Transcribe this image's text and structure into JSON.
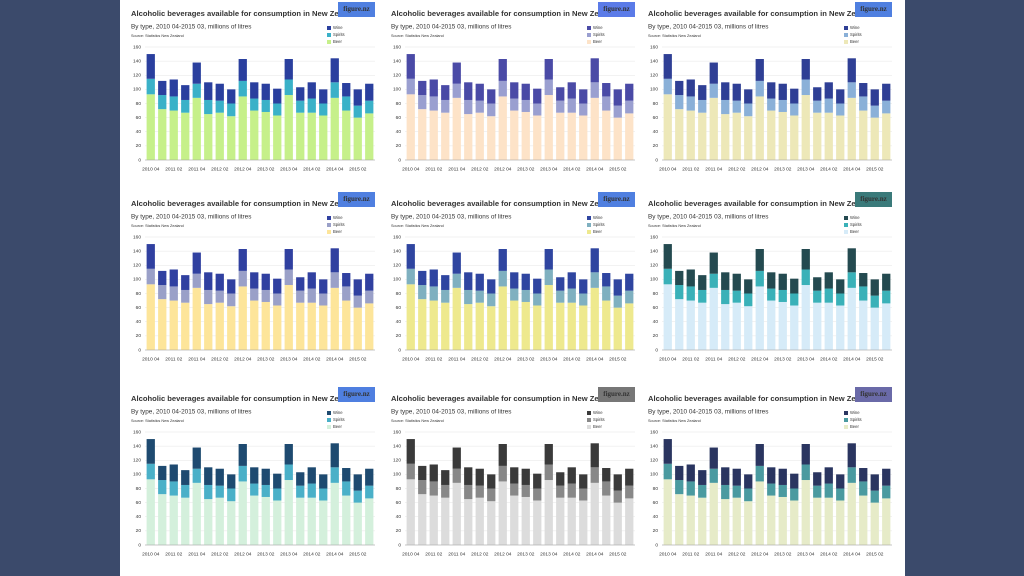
{
  "chart_data": [
    {
      "type": "bar",
      "stacked": true,
      "title": "Alcoholic beverages available for consumption in New Zealand",
      "subtitle": "By type, 2010 04-2015 03, millions of litres",
      "source": "Source: Statistics New Zealand",
      "logo": "figure.nz",
      "logo_color": "#4f7fe0",
      "categories": [
        "2010 04",
        null,
        "2011 02",
        null,
        "2011 04",
        null,
        "2012 02",
        null,
        "2012 04",
        null,
        "2013 02",
        null,
        "2013 04",
        null,
        "2014 02",
        null,
        "2014 04",
        null,
        "2015 02",
        null
      ],
      "series": [
        {
          "name": "Beer",
          "color": "#c6f08a",
          "values": [
            93,
            72,
            70,
            67,
            88,
            65,
            67,
            62,
            90,
            70,
            68,
            63,
            92,
            67,
            67,
            63,
            88,
            70,
            60,
            66
          ]
        },
        {
          "name": "Spirits",
          "color": "#3ab1c8",
          "values": [
            22,
            20,
            20,
            18,
            20,
            20,
            17,
            18,
            22,
            17,
            17,
            17,
            22,
            17,
            20,
            17,
            22,
            20,
            17,
            18
          ]
        },
        {
          "name": "Wine",
          "color": "#2a3f9e",
          "values": [
            35,
            20,
            24,
            21,
            30,
            25,
            24,
            20,
            31,
            23,
            23,
            21,
            29,
            19,
            23,
            20,
            34,
            19,
            23,
            24
          ]
        }
      ],
      "ylim": [
        0,
        160
      ],
      "yticks": [
        0,
        20,
        40,
        60,
        80,
        100,
        120,
        140,
        160
      ],
      "grid": true
    },
    {
      "type": "bar",
      "stacked": true,
      "title": "Alcoholic beverages available for consumption in New Zealand",
      "subtitle": "By type, 2010 04-2015 03, millions of litres",
      "source": "Source: Statistics New Zealand",
      "logo": "figure.nz",
      "logo_color": "#5b7be8",
      "categories": [
        "2010 04",
        null,
        "2011 02",
        null,
        "2011 04",
        null,
        "2012 02",
        null,
        "2012 04",
        null,
        "2013 02",
        null,
        "2013 04",
        null,
        "2014 02",
        null,
        "2014 04",
        null,
        "2015 02",
        null
      ],
      "series": [
        {
          "name": "Beer",
          "color": "#fde3c8",
          "values": [
            93,
            72,
            70,
            67,
            88,
            65,
            67,
            62,
            90,
            70,
            68,
            63,
            92,
            67,
            67,
            63,
            88,
            70,
            60,
            66
          ]
        },
        {
          "name": "Spirits",
          "color": "#9a9fd0",
          "values": [
            22,
            20,
            20,
            18,
            20,
            20,
            17,
            18,
            22,
            17,
            17,
            17,
            22,
            17,
            20,
            17,
            22,
            20,
            17,
            18
          ]
        },
        {
          "name": "Wine",
          "color": "#4a4aa6",
          "values": [
            35,
            20,
            24,
            21,
            30,
            25,
            24,
            20,
            31,
            23,
            23,
            21,
            29,
            19,
            23,
            20,
            34,
            19,
            23,
            24
          ]
        }
      ],
      "ylim": [
        0,
        160
      ],
      "yticks": [
        0,
        20,
        40,
        60,
        80,
        100,
        120,
        140,
        160
      ],
      "grid": true
    },
    {
      "type": "bar",
      "stacked": true,
      "title": "Alcoholic beverages available for consumption in New Zealand",
      "subtitle": "By type, 2010 04-2015 03, millions of litres",
      "source": "Source: Statistics New Zealand",
      "logo": "figure.nz",
      "logo_color": "#4f7fe0",
      "categories": [
        "2010 04",
        null,
        "2011 02",
        null,
        "2011 04",
        null,
        "2012 02",
        null,
        "2012 04",
        null,
        "2013 02",
        null,
        "2013 04",
        null,
        "2014 02",
        null,
        "2014 04",
        null,
        "2015 02",
        null
      ],
      "series": [
        {
          "name": "Beer",
          "color": "#ede8b8",
          "values": [
            93,
            72,
            70,
            67,
            88,
            65,
            67,
            62,
            90,
            70,
            68,
            63,
            92,
            67,
            67,
            63,
            88,
            70,
            60,
            66
          ]
        },
        {
          "name": "Spirits",
          "color": "#8ab0d8",
          "values": [
            22,
            20,
            20,
            18,
            20,
            20,
            17,
            18,
            22,
            17,
            17,
            17,
            22,
            17,
            20,
            17,
            22,
            20,
            17,
            18
          ]
        },
        {
          "name": "Wine",
          "color": "#2f3f95",
          "values": [
            35,
            20,
            24,
            21,
            30,
            25,
            24,
            20,
            31,
            23,
            23,
            21,
            29,
            19,
            23,
            20,
            34,
            19,
            23,
            24
          ]
        }
      ],
      "ylim": [
        0,
        160
      ],
      "yticks": [
        0,
        20,
        40,
        60,
        80,
        100,
        120,
        140,
        160
      ],
      "grid": true
    },
    {
      "type": "bar",
      "stacked": true,
      "title": "Alcoholic beverages available for consumption in New Zealand",
      "subtitle": "By type, 2010 04-2015 03, millions of litres",
      "source": "Source: Statistics New Zealand",
      "logo": "figure.nz",
      "logo_color": "#4f7fe0",
      "categories": [
        "2010 04",
        null,
        "2011 02",
        null,
        "2011 04",
        null,
        "2012 02",
        null,
        "2012 04",
        null,
        "2013 02",
        null,
        "2013 04",
        null,
        "2014 02",
        null,
        "2014 04",
        null,
        "2015 02",
        null
      ],
      "series": [
        {
          "name": "Beer",
          "color": "#fde59a",
          "values": [
            93,
            72,
            70,
            67,
            88,
            65,
            67,
            62,
            90,
            70,
            68,
            63,
            92,
            67,
            67,
            63,
            88,
            70,
            60,
            66
          ]
        },
        {
          "name": "Spirits",
          "color": "#9aa0c8",
          "values": [
            22,
            20,
            20,
            18,
            20,
            20,
            17,
            18,
            22,
            17,
            17,
            17,
            22,
            17,
            20,
            17,
            22,
            20,
            17,
            18
          ]
        },
        {
          "name": "Wine",
          "color": "#3040a0",
          "values": [
            35,
            20,
            24,
            21,
            30,
            25,
            24,
            20,
            31,
            23,
            23,
            21,
            29,
            19,
            23,
            20,
            34,
            19,
            23,
            24
          ]
        }
      ],
      "ylim": [
        0,
        160
      ],
      "yticks": [
        0,
        20,
        40,
        60,
        80,
        100,
        120,
        140,
        160
      ],
      "grid": true
    },
    {
      "type": "bar",
      "stacked": true,
      "title": "Alcoholic beverages available for consumption in New Zealand",
      "subtitle": "By type, 2010 04-2015 03, millions of litres",
      "source": "Source: Statistics New Zealand",
      "logo": "figure.nz",
      "logo_color": "#4f7fe0",
      "categories": [
        "2010 04",
        null,
        "2011 02",
        null,
        "2011 04",
        null,
        "2012 02",
        null,
        "2012 04",
        null,
        "2013 02",
        null,
        "2013 04",
        null,
        "2014 02",
        null,
        "2014 04",
        null,
        "2015 02",
        null
      ],
      "series": [
        {
          "name": "Beer",
          "color": "#eee98e",
          "values": [
            93,
            72,
            70,
            67,
            88,
            65,
            67,
            62,
            90,
            70,
            68,
            63,
            92,
            67,
            67,
            63,
            88,
            70,
            60,
            66
          ]
        },
        {
          "name": "Spirits",
          "color": "#7fb0c0",
          "values": [
            22,
            20,
            20,
            18,
            20,
            20,
            17,
            18,
            22,
            17,
            17,
            17,
            22,
            17,
            20,
            17,
            22,
            20,
            17,
            18
          ]
        },
        {
          "name": "Wine",
          "color": "#2f45a0",
          "values": [
            35,
            20,
            24,
            21,
            30,
            25,
            24,
            20,
            31,
            23,
            23,
            21,
            29,
            19,
            23,
            20,
            34,
            19,
            23,
            24
          ]
        }
      ],
      "ylim": [
        0,
        160
      ],
      "yticks": [
        0,
        20,
        40,
        60,
        80,
        100,
        120,
        140,
        160
      ],
      "grid": true
    },
    {
      "type": "bar",
      "stacked": true,
      "title": "Alcoholic beverages available for consumption in New Zealand",
      "subtitle": "By type, 2010 04-2015 03, millions of litres",
      "source": "Source: Statistics New Zealand",
      "logo": "figure.nz",
      "logo_color": "#3a7a7a",
      "categories": [
        "2010 04",
        null,
        "2011 02",
        null,
        "2011 04",
        null,
        "2012 02",
        null,
        "2012 04",
        null,
        "2013 02",
        null,
        "2013 04",
        null,
        "2014 02",
        null,
        "2014 04",
        null,
        "2015 02",
        null
      ],
      "series": [
        {
          "name": "Beer",
          "color": "#d6ebf8",
          "values": [
            93,
            72,
            70,
            67,
            88,
            65,
            67,
            62,
            90,
            70,
            68,
            63,
            92,
            67,
            67,
            63,
            88,
            70,
            60,
            66
          ]
        },
        {
          "name": "Spirits",
          "color": "#3ab1b8",
          "values": [
            22,
            20,
            20,
            18,
            20,
            20,
            17,
            18,
            22,
            17,
            17,
            17,
            22,
            17,
            20,
            17,
            22,
            20,
            17,
            18
          ]
        },
        {
          "name": "Wine",
          "color": "#244a50",
          "values": [
            35,
            20,
            24,
            21,
            30,
            25,
            24,
            20,
            31,
            23,
            23,
            21,
            29,
            19,
            23,
            20,
            34,
            19,
            23,
            24
          ]
        }
      ],
      "ylim": [
        0,
        160
      ],
      "yticks": [
        0,
        20,
        40,
        60,
        80,
        100,
        120,
        140,
        160
      ],
      "grid": true
    },
    {
      "type": "bar",
      "stacked": true,
      "title": "Alcoholic beverages available for consumption in New Zealand",
      "subtitle": "By type, 2010 04-2015 03, millions of litres",
      "source": "Source: Statistics New Zealand",
      "logo": "figure.nz",
      "logo_color": "#4f7fe0",
      "categories": [
        "2010 04",
        null,
        "2011 02",
        null,
        "2011 04",
        null,
        "2012 02",
        null,
        "2012 04",
        null,
        "2013 02",
        null,
        "2013 04",
        null,
        "2014 02",
        null,
        "2014 04",
        null,
        "2015 02",
        null
      ],
      "series": [
        {
          "name": "Beer",
          "color": "#d4f0dc",
          "values": [
            93,
            72,
            70,
            67,
            88,
            65,
            67,
            62,
            90,
            70,
            68,
            63,
            92,
            67,
            67,
            63,
            88,
            70,
            60,
            66
          ]
        },
        {
          "name": "Spirits",
          "color": "#4ab0c8",
          "values": [
            22,
            20,
            20,
            18,
            20,
            20,
            17,
            18,
            22,
            17,
            17,
            17,
            22,
            17,
            20,
            17,
            22,
            20,
            17,
            18
          ]
        },
        {
          "name": "Wine",
          "color": "#1e4a70",
          "values": [
            35,
            20,
            24,
            21,
            30,
            25,
            24,
            20,
            31,
            23,
            23,
            21,
            29,
            19,
            23,
            20,
            34,
            19,
            23,
            24
          ]
        }
      ],
      "ylim": [
        0,
        160
      ],
      "yticks": [
        0,
        20,
        40,
        60,
        80,
        100,
        120,
        140,
        160
      ],
      "grid": true
    },
    {
      "type": "bar",
      "stacked": true,
      "title": "Alcoholic beverages available for consumption in New Zealand",
      "subtitle": "By type, 2010 04-2015 03, millions of litres",
      "source": "Source: Statistics New Zealand",
      "logo": "figure.nz",
      "logo_color": "#777777",
      "categories": [
        "2010 04",
        null,
        "2011 02",
        null,
        "2011 04",
        null,
        "2012 02",
        null,
        "2012 04",
        null,
        "2013 02",
        null,
        "2013 04",
        null,
        "2014 02",
        null,
        "2014 04",
        null,
        "2015 02",
        null
      ],
      "series": [
        {
          "name": "Beer",
          "color": "#dcdcdc",
          "values": [
            93,
            72,
            70,
            67,
            88,
            65,
            67,
            62,
            90,
            70,
            68,
            63,
            92,
            67,
            67,
            63,
            88,
            70,
            60,
            66
          ]
        },
        {
          "name": "Spirits",
          "color": "#888888",
          "values": [
            22,
            20,
            20,
            18,
            20,
            20,
            17,
            18,
            22,
            17,
            17,
            17,
            22,
            17,
            20,
            17,
            22,
            20,
            17,
            18
          ]
        },
        {
          "name": "Wine",
          "color": "#3a3a3a",
          "values": [
            35,
            20,
            24,
            21,
            30,
            25,
            24,
            20,
            31,
            23,
            23,
            21,
            29,
            19,
            23,
            20,
            34,
            19,
            23,
            24
          ]
        }
      ],
      "ylim": [
        0,
        160
      ],
      "yticks": [
        0,
        20,
        40,
        60,
        80,
        100,
        120,
        140,
        160
      ],
      "grid": true
    },
    {
      "type": "bar",
      "stacked": true,
      "title": "Alcoholic beverages available for consumption in New Zealand",
      "subtitle": "By type, 2010 04-2015 03, millions of litres",
      "source": "Source: Statistics New Zealand",
      "logo": "figure.nz",
      "logo_color": "#6a6aa8",
      "categories": [
        "2010 04",
        null,
        "2011 02",
        null,
        "2011 04",
        null,
        "2012 02",
        null,
        "2012 04",
        null,
        "2013 02",
        null,
        "2013 04",
        null,
        "2014 02",
        null,
        "2014 04",
        null,
        "2015 02",
        null
      ],
      "series": [
        {
          "name": "Beer",
          "color": "#e6ebc8",
          "values": [
            93,
            72,
            70,
            67,
            88,
            65,
            67,
            62,
            90,
            70,
            68,
            63,
            92,
            67,
            67,
            63,
            88,
            70,
            60,
            66
          ]
        },
        {
          "name": "Spirits",
          "color": "#4a9aa0",
          "values": [
            22,
            20,
            20,
            18,
            20,
            20,
            17,
            18,
            22,
            17,
            17,
            17,
            22,
            17,
            20,
            17,
            22,
            20,
            17,
            18
          ]
        },
        {
          "name": "Wine",
          "color": "#2a3560",
          "values": [
            35,
            20,
            24,
            21,
            30,
            25,
            24,
            20,
            31,
            23,
            23,
            21,
            29,
            19,
            23,
            20,
            34,
            19,
            23,
            24
          ]
        }
      ],
      "ylim": [
        0,
        160
      ],
      "yticks": [
        0,
        20,
        40,
        60,
        80,
        100,
        120,
        140,
        160
      ],
      "grid": true
    }
  ]
}
